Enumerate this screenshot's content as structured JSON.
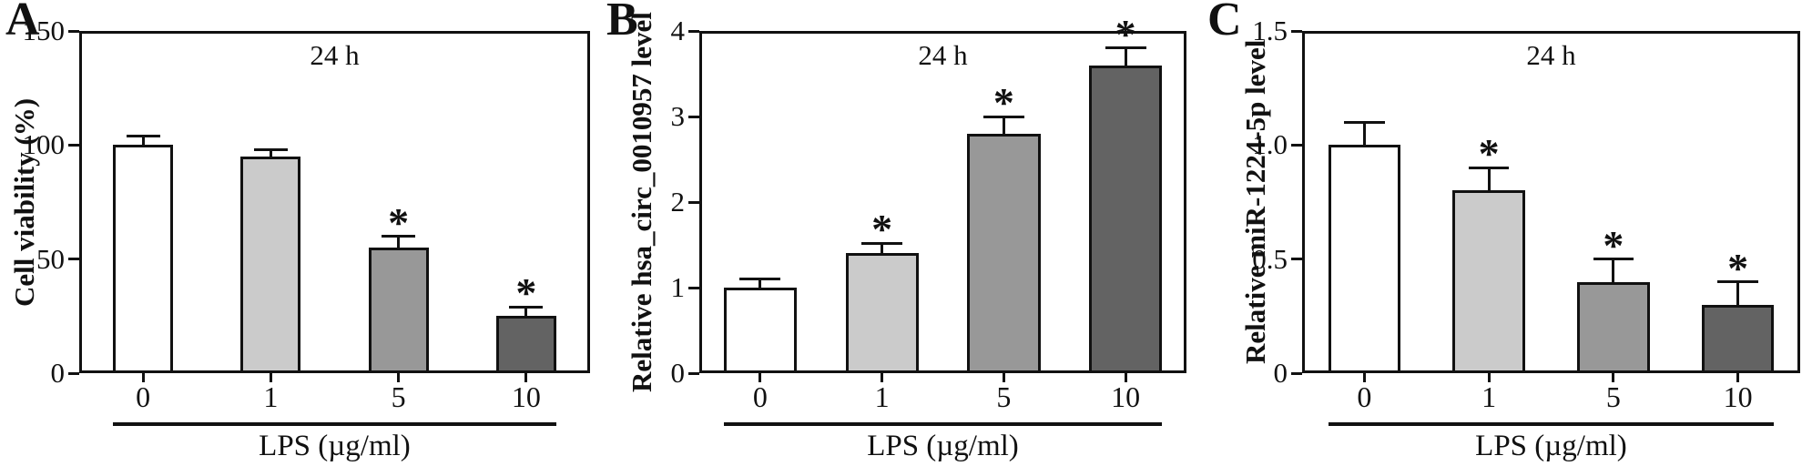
{
  "style": {
    "axis_color": "#111111",
    "background_color": "#ffffff",
    "significance_marker": "*"
  },
  "chart_data": [
    {
      "type": "bar",
      "panel_label": "A",
      "title": "24 h",
      "ylabel": "Cell viability (%)",
      "xlabel": "LPS (µg/ml)",
      "categories": [
        "0",
        "1",
        "5",
        "10"
      ],
      "values": [
        100,
        95,
        55,
        25
      ],
      "errors": [
        4,
        3,
        5,
        4
      ],
      "significance": [
        "",
        "",
        "*",
        "*"
      ],
      "ylim": [
        0,
        150
      ],
      "yticks": [
        "0",
        "50",
        "100",
        "150"
      ],
      "bar_colors": [
        "#ffffff",
        "#cbcbcb",
        "#989898",
        "#636363"
      ],
      "grid": false,
      "legend": null
    },
    {
      "type": "bar",
      "panel_label": "B",
      "title": "24 h",
      "ylabel": "Relative hsa_circ_0010957 level",
      "xlabel": "LPS (µg/ml)",
      "categories": [
        "0",
        "1",
        "5",
        "10"
      ],
      "values": [
        1.0,
        1.4,
        2.8,
        3.6
      ],
      "errors": [
        0.1,
        0.12,
        0.2,
        0.2
      ],
      "significance": [
        "",
        "*",
        "*",
        "*"
      ],
      "ylim": [
        0,
        4
      ],
      "yticks": [
        "0",
        "1",
        "2",
        "3",
        "4"
      ],
      "bar_colors": [
        "#ffffff",
        "#cbcbcb",
        "#989898",
        "#636363"
      ],
      "grid": false,
      "legend": null
    },
    {
      "type": "bar",
      "panel_label": "C",
      "title": "24 h",
      "ylabel": "Relative miR-1224-5p level",
      "xlabel": "LPS (µg/ml)",
      "categories": [
        "0",
        "1",
        "5",
        "10"
      ],
      "values": [
        1.0,
        0.8,
        0.4,
        0.3
      ],
      "errors": [
        0.1,
        0.1,
        0.1,
        0.1
      ],
      "significance": [
        "",
        "*",
        "*",
        "*"
      ],
      "ylim": [
        0,
        1.5
      ],
      "yticks": [
        "0",
        "0.5",
        "1.0",
        "1.5"
      ],
      "bar_colors": [
        "#ffffff",
        "#cbcbcb",
        "#989898",
        "#636363"
      ],
      "grid": false,
      "legend": null
    }
  ]
}
